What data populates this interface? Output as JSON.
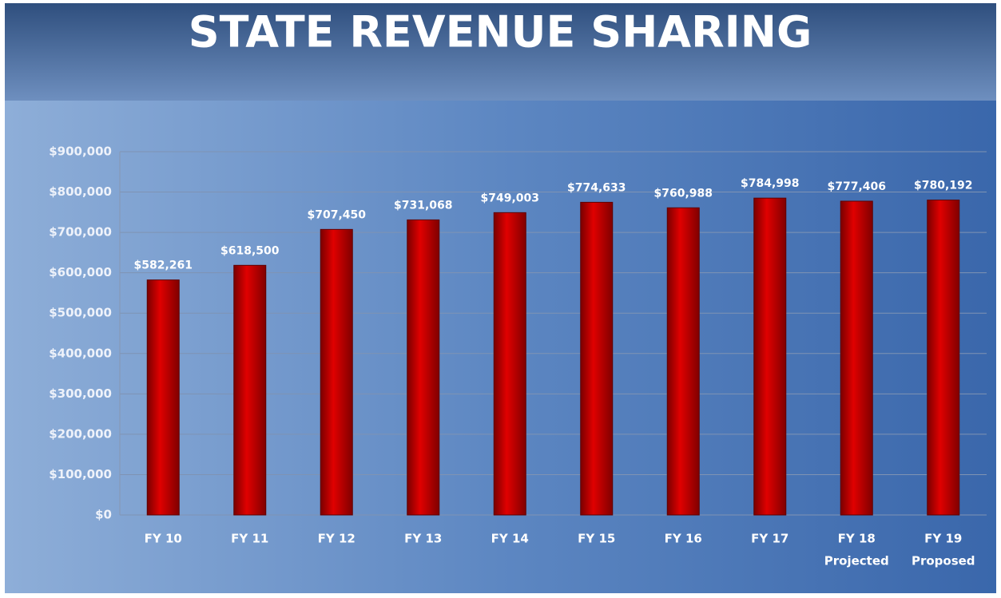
{
  "chart_data": {
    "type": "bar",
    "title": "STATE REVENUE SHARING",
    "categories": [
      "FY 10",
      "FY 11",
      "FY 12",
      "FY 13",
      "FY 14",
      "FY 15",
      "FY 16",
      "FY 17",
      "FY 18",
      "FY 19"
    ],
    "category_sublabels": [
      null,
      null,
      null,
      null,
      null,
      null,
      null,
      null,
      "Projected",
      "Proposed"
    ],
    "values": [
      582261,
      618500,
      707450,
      731068,
      749003,
      774633,
      760988,
      784998,
      777406,
      780192
    ],
    "value_labels": [
      "$582,261",
      "$618,500",
      "$707,450",
      "$731,068",
      "$749,003",
      "$774,633",
      "$760,988",
      "$784,998",
      "$777,406",
      "$780,192"
    ],
    "color": "#c00000",
    "ylim": [
      0,
      900000
    ],
    "yticks": [
      {
        "value": 0,
        "label": "$0"
      },
      {
        "value": 100000,
        "label": "$100,000"
      },
      {
        "value": 200000,
        "label": "$200,000"
      },
      {
        "value": 300000,
        "label": "$300,000"
      },
      {
        "value": 400000,
        "label": "$400,000"
      },
      {
        "value": 500000,
        "label": "$500,000"
      },
      {
        "value": 600000,
        "label": "$600,000"
      },
      {
        "value": 700000,
        "label": "$700,000"
      },
      {
        "value": 800000,
        "label": "$800,000"
      },
      {
        "value": 900000,
        "label": "$900,000"
      }
    ],
    "grid": true
  }
}
